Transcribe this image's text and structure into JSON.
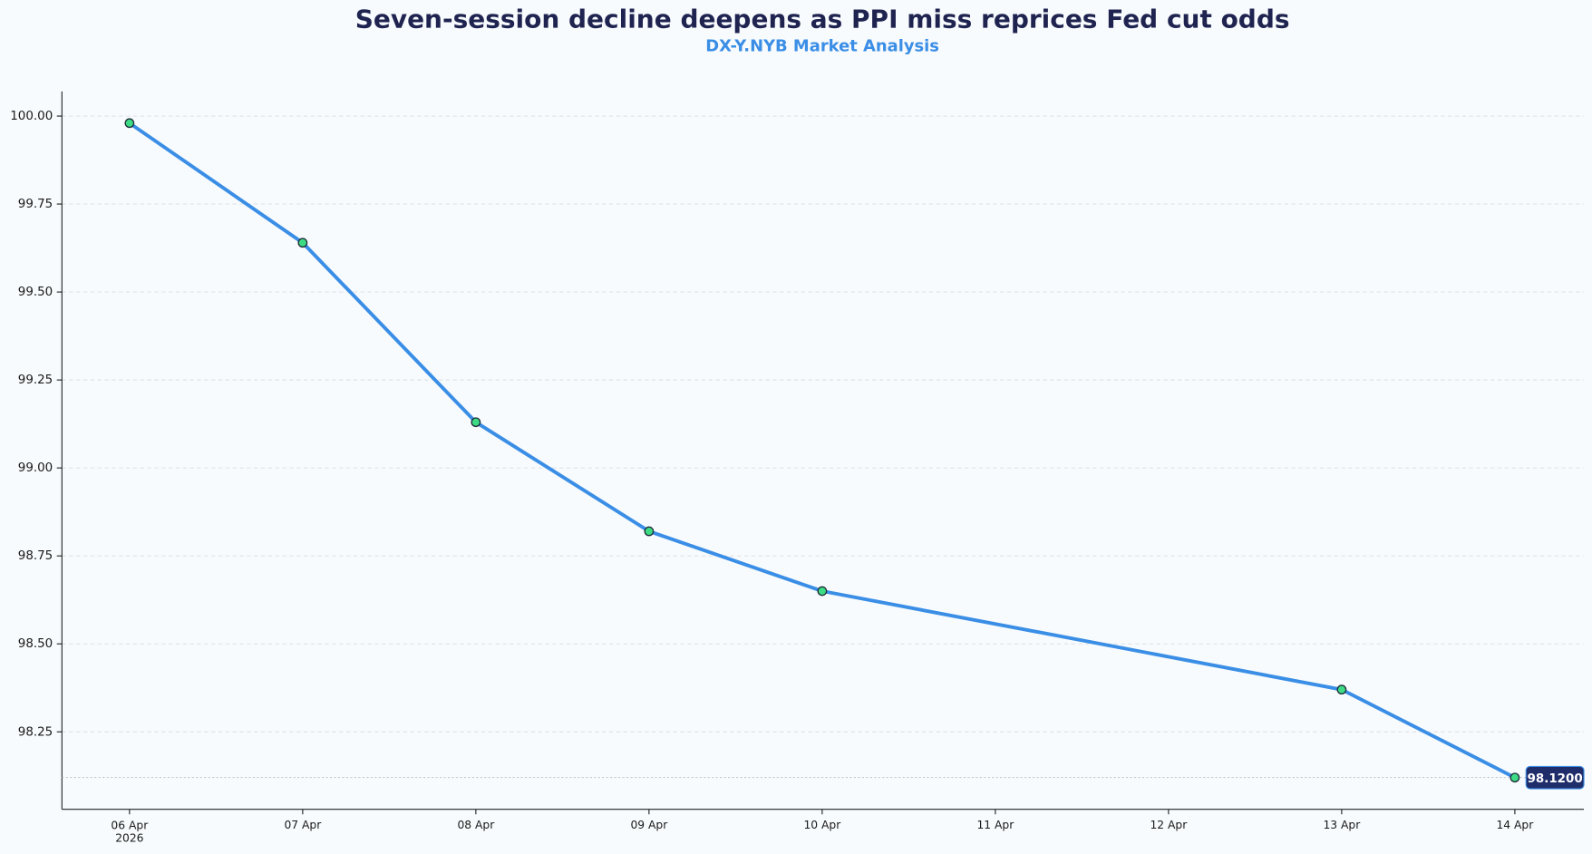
{
  "chart_data": {
    "type": "line",
    "title": "Seven-session decline deepens as PPI miss reprices Fed cut odds",
    "subtitle": "DX-Y.NYB Market Analysis",
    "x": [
      "2026-04-06",
      "2026-04-07",
      "2026-04-08",
      "2026-04-09",
      "2026-04-10",
      "2026-04-13",
      "2026-04-14"
    ],
    "series": [
      {
        "color": "#3a8ee6",
        "marker_color": "#3ddc84",
        "values": [
          99.98,
          99.64,
          99.13,
          98.82,
          98.65,
          98.37,
          98.12
        ],
        "value_labels": [
          null,
          null,
          null,
          null,
          null,
          null,
          "98.1200"
        ]
      }
    ],
    "xlim": [
      "2026-04-05T14:38",
      "2026-04-14T09:34"
    ],
    "xticks": [
      {
        "value": "2026-04-06",
        "label": "06 Apr\n2026"
      },
      {
        "value": "2026-04-07",
        "label": "07 Apr"
      },
      {
        "value": "2026-04-08",
        "label": "08 Apr"
      },
      {
        "value": "2026-04-09",
        "label": "09 Apr"
      },
      {
        "value": "2026-04-10",
        "label": "10 Apr"
      },
      {
        "value": "2026-04-11",
        "label": "11 Apr"
      },
      {
        "value": "2026-04-12",
        "label": "12 Apr"
      },
      {
        "value": "2026-04-13",
        "label": "13 Apr"
      },
      {
        "value": "2026-04-14",
        "label": "14 Apr"
      }
    ],
    "ylim": [
      98.03,
      100.07
    ],
    "yticks": [
      {
        "value": 98.25,
        "label": "98.25"
      },
      {
        "value": 98.5,
        "label": "98.50"
      },
      {
        "value": 98.75,
        "label": "98.75"
      },
      {
        "value": 99,
        "label": "99.00"
      },
      {
        "value": 99.25,
        "label": "99.25"
      },
      {
        "value": 99.5,
        "label": "99.50"
      },
      {
        "value": 99.75,
        "label": "99.75"
      },
      {
        "value": 100,
        "label": "100.00"
      }
    ],
    "grid": true
  }
}
